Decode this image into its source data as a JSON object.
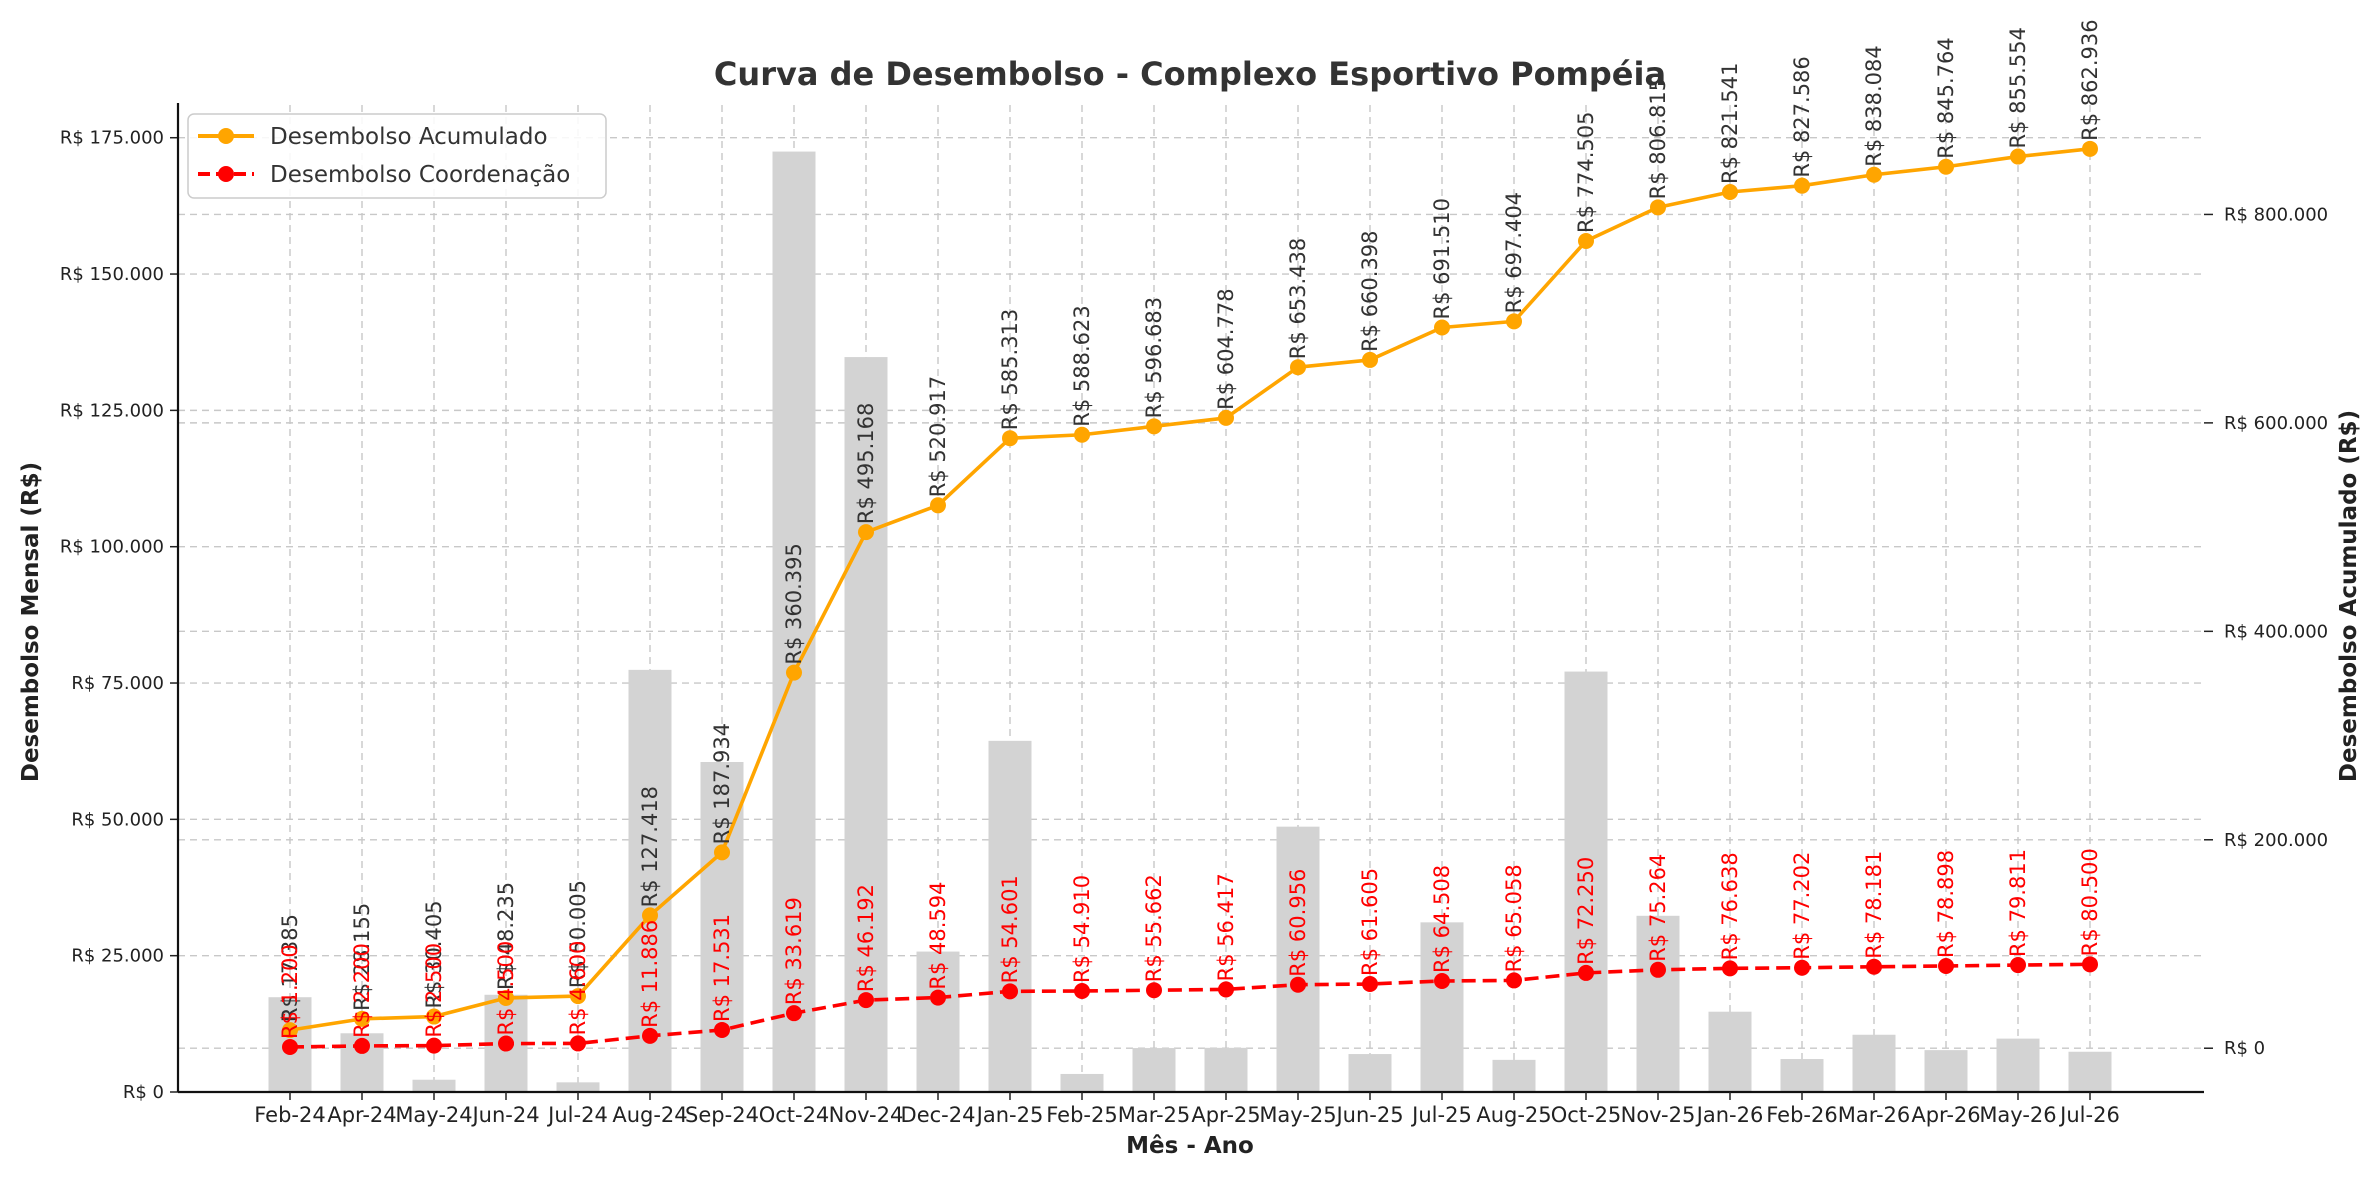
{
  "chart_data": {
    "type": "bar+line",
    "title": "Curva de Desembolso - Complexo Esportivo Pompéia",
    "xlabel": "Mês - Ano",
    "ylabel_left": "Desembolso Mensal (R$)",
    "ylabel_right": "Desembolso Acumulado (R$)",
    "categories": [
      "Feb-24",
      "Apr-24",
      "May-24",
      "Jun-24",
      "Jul-24",
      "Aug-24",
      "Sep-24",
      "Oct-24",
      "Nov-24",
      "Dec-24",
      "Jan-25",
      "Feb-25",
      "Mar-25",
      "Apr-25",
      "May-25",
      "Jun-25",
      "Jul-25",
      "Aug-25",
      "Oct-25",
      "Nov-25",
      "Jan-26",
      "Feb-26",
      "Mar-26",
      "Apr-26",
      "May-26",
      "Jul-26"
    ],
    "ylim_left": [
      0,
      181000
    ],
    "ylim_right": [
      -42000,
      905000
    ],
    "left_ticks": [
      0,
      25000,
      50000,
      75000,
      100000,
      125000,
      150000,
      175000
    ],
    "left_tick_labels": [
      "R$ 0",
      "R$ 25.000",
      "R$ 50.000",
      "R$ 75.000",
      "R$ 100.000",
      "R$ 125.000",
      "R$ 150.000",
      "R$ 175.000"
    ],
    "right_ticks": [
      0,
      200000,
      400000,
      600000,
      800000
    ],
    "right_tick_labels": [
      "R$ 0",
      "R$ 200.000",
      "R$ 400.000",
      "R$ 600.000",
      "R$ 800.000"
    ],
    "grid": true,
    "legend_position": "top-left",
    "series": [
      {
        "name": "Desembolso Mensal",
        "kind": "bar",
        "axis": "left",
        "color": "#d3d3d3",
        "values": [
          17385,
          10770,
          2250,
          17830,
          1770,
          77413,
          60516,
          172461,
          134773,
          25749,
          64396,
          3310,
          8060,
          8095,
          48660,
          6960,
          31112,
          5894,
          77101,
          32310,
          14726,
          6045,
          10498,
          7680,
          9790,
          7382
        ]
      },
      {
        "name": "Desembolso Acumulado",
        "kind": "line",
        "axis": "right",
        "color": "#ffa500",
        "values": [
          17385,
          28155,
          30405,
          48235,
          50005,
          127418,
          187934,
          360395,
          495168,
          520917,
          585313,
          588623,
          596683,
          604778,
          653438,
          660398,
          691510,
          697404,
          774505,
          806815,
          821541,
          827586,
          838084,
          845764,
          855554,
          862936
        ],
        "labels": [
          "R$ 17.385",
          "R$ 28.155",
          "R$ 30.405",
          "R$ 48.235",
          "R$ 50.005",
          "R$ 127.418",
          "R$ 187.934",
          "R$ 360.395",
          "R$ 495.168",
          "R$ 520.917",
          "R$ 585.313",
          "R$ 588.623",
          "R$ 596.683",
          "R$ 604.778",
          "R$ 653.438",
          "R$ 660.398",
          "R$ 691.510",
          "R$ 697.404",
          "R$ 774.505",
          "R$ 806.815",
          "R$ 821.541",
          "R$ 827.586",
          "R$ 838.084",
          "R$ 845.764",
          "R$ 855.554",
          "R$ 862.936"
        ]
      },
      {
        "name": "Desembolso Coordenação",
        "kind": "line",
        "axis": "right",
        "color": "#ff0000",
        "dashed": true,
        "values": [
          1200,
          2200,
          2500,
          4500,
          4600,
          11886,
          17531,
          33619,
          46192,
          48594,
          54601,
          54910,
          55662,
          56417,
          60956,
          61605,
          64508,
          65058,
          72250,
          75264,
          76638,
          77202,
          78181,
          78898,
          79811,
          80500
        ],
        "labels": [
          "R$ 1.200",
          "R$ 2.200",
          "R$ 2.500",
          "R$ 4.500",
          "R$ 4.600",
          "R$ 11.886",
          "R$ 17.531",
          "R$ 33.619",
          "R$ 46.192",
          "R$ 48.594",
          "R$ 54.601",
          "R$ 54.910",
          "R$ 55.662",
          "R$ 56.417",
          "R$ 60.956",
          "R$ 61.605",
          "R$ 64.508",
          "R$ 65.058",
          "R$ 72.250",
          "R$ 75.264",
          "R$ 76.638",
          "R$ 77.202",
          "R$ 78.181",
          "R$ 78.898",
          "R$ 79.811",
          "R$ 80.500"
        ]
      }
    ]
  }
}
